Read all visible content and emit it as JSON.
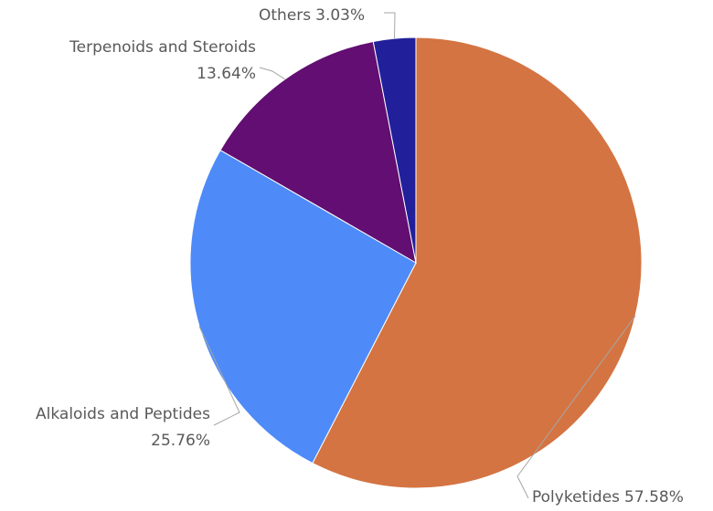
{
  "chart_data": {
    "type": "pie",
    "title": "",
    "slices": [
      {
        "label": "Polyketides",
        "value": 57.58,
        "display": "57.58%",
        "color": "#D47442"
      },
      {
        "label": "Alkaloids and Peptides",
        "value": 25.76,
        "display": "25.76%",
        "color": "#4E8AF8"
      },
      {
        "label": "Terpenoids and Steroids",
        "value": 13.64,
        "display": "13.64%",
        "color": "#620E72"
      },
      {
        "label": "Others",
        "value": 3.03,
        "display": "3.03%",
        "color": "#21209A"
      }
    ],
    "start_angle": "12 o'clock",
    "direction": "clockwise",
    "legend": "none",
    "data_labels": "outside with leader lines"
  }
}
